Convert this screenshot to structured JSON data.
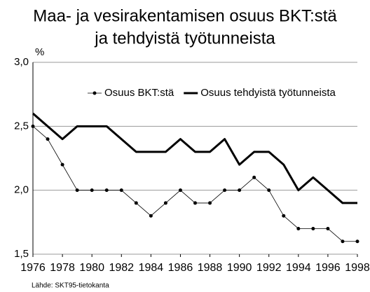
{
  "chart_data": {
    "type": "line",
    "title": [
      "Maa- ja vesirakentamisen osuus BKT:stä",
      "ja tehdyistä työtunneista"
    ],
    "y_unit": "%",
    "source": "Lähde: SKT95-tietokanta",
    "x": [
      1976,
      1977,
      1978,
      1979,
      1980,
      1981,
      1982,
      1983,
      1984,
      1985,
      1986,
      1987,
      1988,
      1989,
      1990,
      1991,
      1992,
      1993,
      1994,
      1995,
      1996,
      1997,
      1998
    ],
    "series": [
      {
        "name": "Osuus BKT:stä",
        "color": "#000000",
        "linewidth": 0.8,
        "marker": true,
        "values": [
          2.5,
          2.4,
          2.2,
          2.0,
          2.0,
          2.0,
          2.0,
          1.9,
          1.8,
          1.9,
          2.0,
          1.9,
          1.9,
          2.0,
          2.0,
          2.1,
          2.0,
          1.8,
          1.7,
          1.7,
          1.7,
          1.6,
          1.6
        ]
      },
      {
        "name": "Osuus tehdyistä työtunneista",
        "color": "#000000",
        "linewidth": 3,
        "marker": false,
        "values": [
          2.6,
          2.5,
          2.4,
          2.5,
          2.5,
          2.5,
          2.4,
          2.3,
          2.3,
          2.3,
          2.4,
          2.3,
          2.3,
          2.4,
          2.2,
          2.3,
          2.3,
          2.2,
          2.0,
          2.1,
          2.0,
          1.9,
          1.9
        ]
      }
    ],
    "xlim": [
      1976,
      1998
    ],
    "xticks": [
      1976,
      1978,
      1980,
      1982,
      1984,
      1986,
      1988,
      1990,
      1992,
      1994,
      1996,
      1998
    ],
    "ylim": [
      1.5,
      3.0
    ],
    "yticks": [
      {
        "value": 1.5,
        "label": "1,5"
      },
      {
        "value": 2.0,
        "label": "2,0"
      },
      {
        "value": 2.5,
        "label": "2,5"
      },
      {
        "value": 3.0,
        "label": "3,0"
      }
    ],
    "grid": true,
    "legend": "top"
  }
}
